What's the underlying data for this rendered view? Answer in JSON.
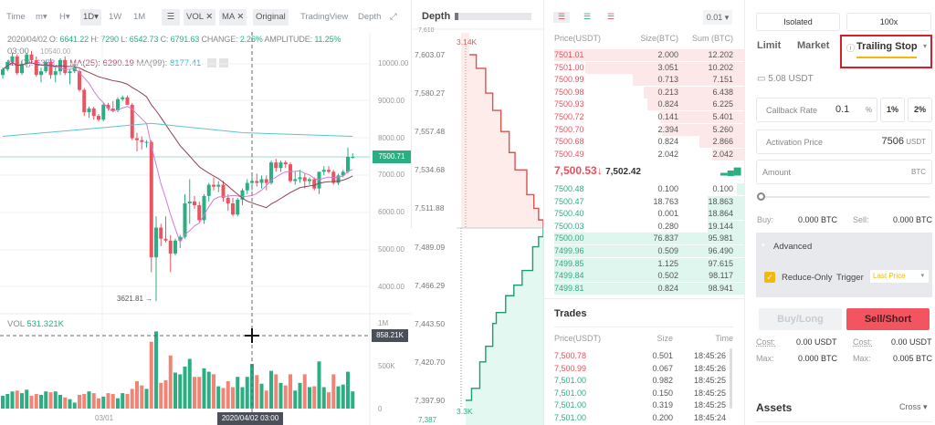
{
  "toolbar": {
    "items": [
      "Time",
      "m▾",
      "H▾",
      "1D▾",
      "1W",
      "1M"
    ],
    "vol": "VOL ✕",
    "ma": "MA ✕",
    "original": "Original",
    "tradingview": "TradingView",
    "depth": "Depth"
  },
  "ohlc": {
    "date": "2020/04/02",
    "time": "03:00",
    "o_label": "O:",
    "o": "6641.22",
    "h_label": "H:",
    "h": "7290",
    "l_label": "L:",
    "l": "6542.73",
    "c_label": "C:",
    "c": "6791.63",
    "change_label": "CHANGE:",
    "change": "2.26%",
    "amp_label": "AMPLITUDE:",
    "amp": "11.25%",
    "ma7": "MA(7): 6378.19",
    "ma25": "MA(25): 6290.19",
    "ma99_label": "MA(99):",
    "ma99": "8177.41",
    "high_marker": "10540.00"
  },
  "chart_data": {
    "type": "candlestick",
    "price_ticks": [
      "10000.00",
      "9000.00",
      "8000.00",
      "7000.00",
      "6000.00",
      "5000.00",
      "4000.00"
    ],
    "price_tick_values": [
      10000,
      9000,
      8000,
      7000,
      6000,
      5000,
      4000
    ],
    "last_price": "7500.71",
    "last_price_value": 7500.71,
    "low_marker": "3621.81",
    "x_ticks": [
      "03/01"
    ],
    "crosshair_label": "2020/04/02 03:00",
    "crosshair_index": 52,
    "vol_label": "VOL",
    "vol_value": "531.321K",
    "vol_ticks": [
      "1M",
      "500K",
      "0"
    ],
    "vol_crosshair": "858.21K",
    "candles": [
      [
        9700,
        9900,
        9600,
        9850,
        150
      ],
      [
        9850,
        10100,
        9800,
        10050,
        170
      ],
      [
        10050,
        10300,
        9950,
        10200,
        200
      ],
      [
        10200,
        10250,
        9700,
        9750,
        210
      ],
      [
        9750,
        10100,
        9700,
        10000,
        180
      ],
      [
        10000,
        10300,
        9900,
        10250,
        220
      ],
      [
        10250,
        10350,
        10000,
        10100,
        150
      ],
      [
        10100,
        10200,
        9650,
        9700,
        170
      ],
      [
        9700,
        9900,
        9500,
        9800,
        160
      ],
      [
        9800,
        10100,
        9750,
        10050,
        200
      ],
      [
        10050,
        10150,
        9600,
        9700,
        190
      ],
      [
        9700,
        9900,
        9500,
        9800,
        200
      ],
      [
        9800,
        10150,
        9700,
        10100,
        160
      ],
      [
        10100,
        10200,
        9700,
        9750,
        130
      ],
      [
        9750,
        9850,
        9450,
        9800,
        110
      ],
      [
        9800,
        10000,
        9750,
        9900,
        70
      ],
      [
        9800,
        9850,
        9250,
        9300,
        160
      ],
      [
        9300,
        9350,
        8600,
        8700,
        170
      ],
      [
        8700,
        8850,
        8550,
        8800,
        200
      ],
      [
        8800,
        8850,
        8500,
        8600,
        180
      ],
      [
        8600,
        8650,
        8450,
        8500,
        120
      ],
      [
        8500,
        8950,
        8450,
        8900,
        140
      ],
      [
        8900,
        8950,
        8750,
        8800,
        180
      ],
      [
        8800,
        9000,
        8700,
        8750,
        170
      ],
      [
        8750,
        9100,
        8700,
        9050,
        120
      ],
      [
        9050,
        9150,
        9000,
        9100,
        180
      ],
      [
        9100,
        9150,
        8900,
        8900,
        170
      ],
      [
        8900,
        8950,
        7950,
        8000,
        230
      ],
      [
        8000,
        8150,
        7650,
        7950,
        320
      ],
      [
        7950,
        8050,
        7700,
        7900,
        270
      ],
      [
        7900,
        7950,
        7750,
        7900,
        230
      ],
      [
        7900,
        7950,
        4400,
        4800,
        780
      ],
      [
        4800,
        5900,
        3621,
        5600,
        900
      ],
      [
        5600,
        5700,
        5100,
        5300,
        300
      ],
      [
        5300,
        5900,
        5200,
        5250,
        330
      ],
      [
        5250,
        5400,
        4400,
        4900,
        620
      ],
      [
        4900,
        5300,
        4850,
        5250,
        420
      ],
      [
        5250,
        5400,
        5050,
        5350,
        400
      ],
      [
        5350,
        6500,
        5300,
        6250,
        490
      ],
      [
        6250,
        6900,
        5700,
        6300,
        580
      ],
      [
        6300,
        6450,
        6100,
        6200,
        370
      ],
      [
        6200,
        6300,
        5750,
        5800,
        370
      ],
      [
        5800,
        6500,
        5700,
        6450,
        470
      ],
      [
        6450,
        6800,
        6300,
        6750,
        430
      ],
      [
        6750,
        6950,
        6600,
        6700,
        400
      ],
      [
        6700,
        6850,
        6550,
        6750,
        260
      ],
      [
        6750,
        6850,
        6300,
        6400,
        240
      ],
      [
        6400,
        6500,
        6050,
        6250,
        320
      ],
      [
        6250,
        6400,
        5900,
        5950,
        250
      ],
      [
        5950,
        6400,
        5900,
        6350,
        370
      ],
      [
        6350,
        6650,
        6200,
        6600,
        250
      ],
      [
        6600,
        6900,
        6500,
        6800,
        370
      ],
      [
        6800,
        7050,
        6600,
        6850,
        520
      ],
      [
        6850,
        7050,
        6700,
        6800,
        390
      ],
      [
        6800,
        7000,
        6650,
        6900,
        290
      ],
      [
        6900,
        7000,
        6600,
        6800,
        210
      ],
      [
        6800,
        7400,
        6750,
        7350,
        440
      ],
      [
        7350,
        7450,
        7100,
        7200,
        400
      ],
      [
        7200,
        7400,
        7100,
        7350,
        300
      ],
      [
        7350,
        7400,
        7200,
        7300,
        270
      ],
      [
        7300,
        7350,
        6800,
        6850,
        400
      ],
      [
        6850,
        7100,
        6750,
        6900,
        210
      ],
      [
        6900,
        7150,
        6800,
        6950,
        300
      ],
      [
        6950,
        7050,
        6650,
        6850,
        400
      ],
      [
        6850,
        6950,
        6750,
        6900,
        250
      ],
      [
        6900,
        6950,
        6600,
        6650,
        260
      ],
      [
        6650,
        7100,
        6500,
        7100,
        550
      ],
      [
        7100,
        7250,
        7000,
        7150,
        250
      ],
      [
        7150,
        7250,
        7050,
        7100,
        190
      ],
      [
        7100,
        7150,
        6750,
        6800,
        400
      ],
      [
        6800,
        7050,
        6750,
        7000,
        260
      ],
      [
        7000,
        7150,
        6950,
        7100,
        280
      ],
      [
        7100,
        7750,
        7050,
        7500,
        430
      ],
      [
        7500,
        7600,
        7450,
        7500,
        200
      ]
    ],
    "ma99_points": [
      [
        0,
        8050
      ],
      [
        31,
        8400
      ],
      [
        50,
        8150
      ],
      [
        73,
        8050
      ]
    ],
    "colors": {
      "up": "#2cae83",
      "down": "#ea5461",
      "vol_down": "#f08576",
      "ma7": "#d27ad6",
      "ma25": "#8e3f5a",
      "ma99": "#5cc4cc"
    }
  },
  "depth": {
    "title": "Depth",
    "ticks": [
      "7,603.07",
      "7,580.27",
      "7,557.48",
      "7,534.68",
      "7,511.88",
      "7,489.09",
      "7,466.29",
      "7,443.50",
      "7,420.70",
      "7,397.90"
    ],
    "top_partial": "7,610",
    "bottom_partial": "7,387",
    "ask_max": "3.14K",
    "bid_max": "3.3K",
    "asks": [
      [
        7500,
        0
      ],
      [
        7505,
        200
      ],
      [
        7511.88,
        400
      ],
      [
        7520,
        700
      ],
      [
        7534.68,
        1200
      ],
      [
        7545,
        1450
      ],
      [
        7557.48,
        1800
      ],
      [
        7570,
        2150
      ],
      [
        7580.27,
        2450
      ],
      [
        7595,
        2850
      ],
      [
        7603.07,
        3140
      ]
    ],
    "bids": [
      [
        7500,
        0
      ],
      [
        7495,
        200
      ],
      [
        7489.09,
        450
      ],
      [
        7475,
        900
      ],
      [
        7466.29,
        1250
      ],
      [
        7460,
        1600
      ],
      [
        7450,
        2000
      ],
      [
        7443.5,
        2150
      ],
      [
        7430,
        2450
      ],
      [
        7420.7,
        2700
      ],
      [
        7405,
        3050
      ],
      [
        7397.9,
        3300
      ]
    ]
  },
  "orderbook": {
    "precision": "0.01 ▾",
    "headers": [
      "Price(USDT)",
      "Size(BTC)",
      "Sum (BTC)"
    ],
    "asks": [
      [
        "7501.01",
        "2.000",
        "12.202"
      ],
      [
        "7501.00",
        "3.051",
        "10.202"
      ],
      [
        "7500.99",
        "0.713",
        "7.151"
      ],
      [
        "7500.98",
        "0.213",
        "6.438"
      ],
      [
        "7500.93",
        "0.824",
        "6.225"
      ],
      [
        "7500.72",
        "0.141",
        "5.401"
      ],
      [
        "7500.70",
        "2.394",
        "5.260"
      ],
      [
        "7500.68",
        "0.824",
        "2.866"
      ],
      [
        "7500.49",
        "2.042",
        "2.042"
      ]
    ],
    "last_price": "7,500.53",
    "arrow": "↓",
    "mark_price": "7,502.42",
    "bids": [
      [
        "7500.48",
        "0.100",
        "0.100"
      ],
      [
        "7500.47",
        "18.763",
        "18.863"
      ],
      [
        "7500.40",
        "0.001",
        "18.864"
      ],
      [
        "7500.03",
        "0.280",
        "19.144"
      ],
      [
        "7500.00",
        "76.837",
        "95.981"
      ],
      [
        "7499.96",
        "0.509",
        "96.490"
      ],
      [
        "7499.85",
        "1.125",
        "97.615"
      ],
      [
        "7499.84",
        "0.502",
        "98.117"
      ],
      [
        "7499.81",
        "0.824",
        "98.941"
      ]
    ]
  },
  "trades": {
    "title": "Trades",
    "headers": [
      "Price(USDT)",
      "Size",
      "Time"
    ],
    "rows": [
      [
        "7,500.78",
        "0.501",
        "18:45:26",
        "sell"
      ],
      [
        "7,500.99",
        "0.067",
        "18:45:26",
        "sell"
      ],
      [
        "7,501.00",
        "0.982",
        "18:45:25",
        "buy"
      ],
      [
        "7,501.00",
        "0.150",
        "18:45:25",
        "buy"
      ],
      [
        "7,501.00",
        "0.319",
        "18:45:25",
        "buy"
      ],
      [
        "7,501.00",
        "0.200",
        "18:45:24",
        "buy"
      ]
    ]
  },
  "form": {
    "margin_mode": "Isolated",
    "leverage": "100x",
    "tabs": [
      "Limit",
      "Market",
      "Trailing Stop"
    ],
    "balance": "5.08 USDT",
    "callback_label": "Callback Rate",
    "callback_value": "0.1",
    "callback_unit": "%",
    "pct1": "1%",
    "pct2": "2%",
    "activation_label": "Activation Price",
    "activation_value": "7506",
    "activation_unit": "USDT",
    "amount_label": "Amount",
    "amount_unit": "BTC",
    "slider_value": 0,
    "buy_label": "Buy:",
    "buy_value": "0.000 BTC",
    "sell_label": "Sell:",
    "sell_value": "0.000 BTC",
    "advanced": "Advanced",
    "reduce_only": "Reduce-Only",
    "reduce_only_checked": true,
    "trigger_label": "Trigger",
    "trigger_value": "Last Price",
    "buy_button": "Buy/Long",
    "sell_button": "Sell/Short",
    "cost_label": "Cost:",
    "buy_cost": "0.00 USDT",
    "sell_cost": "0.00 USDT",
    "max_label": "Max:",
    "buy_max": "0.000 BTC",
    "sell_max": "0.005 BTC",
    "assets": "Assets",
    "assets_mode": "Cross ▾"
  }
}
